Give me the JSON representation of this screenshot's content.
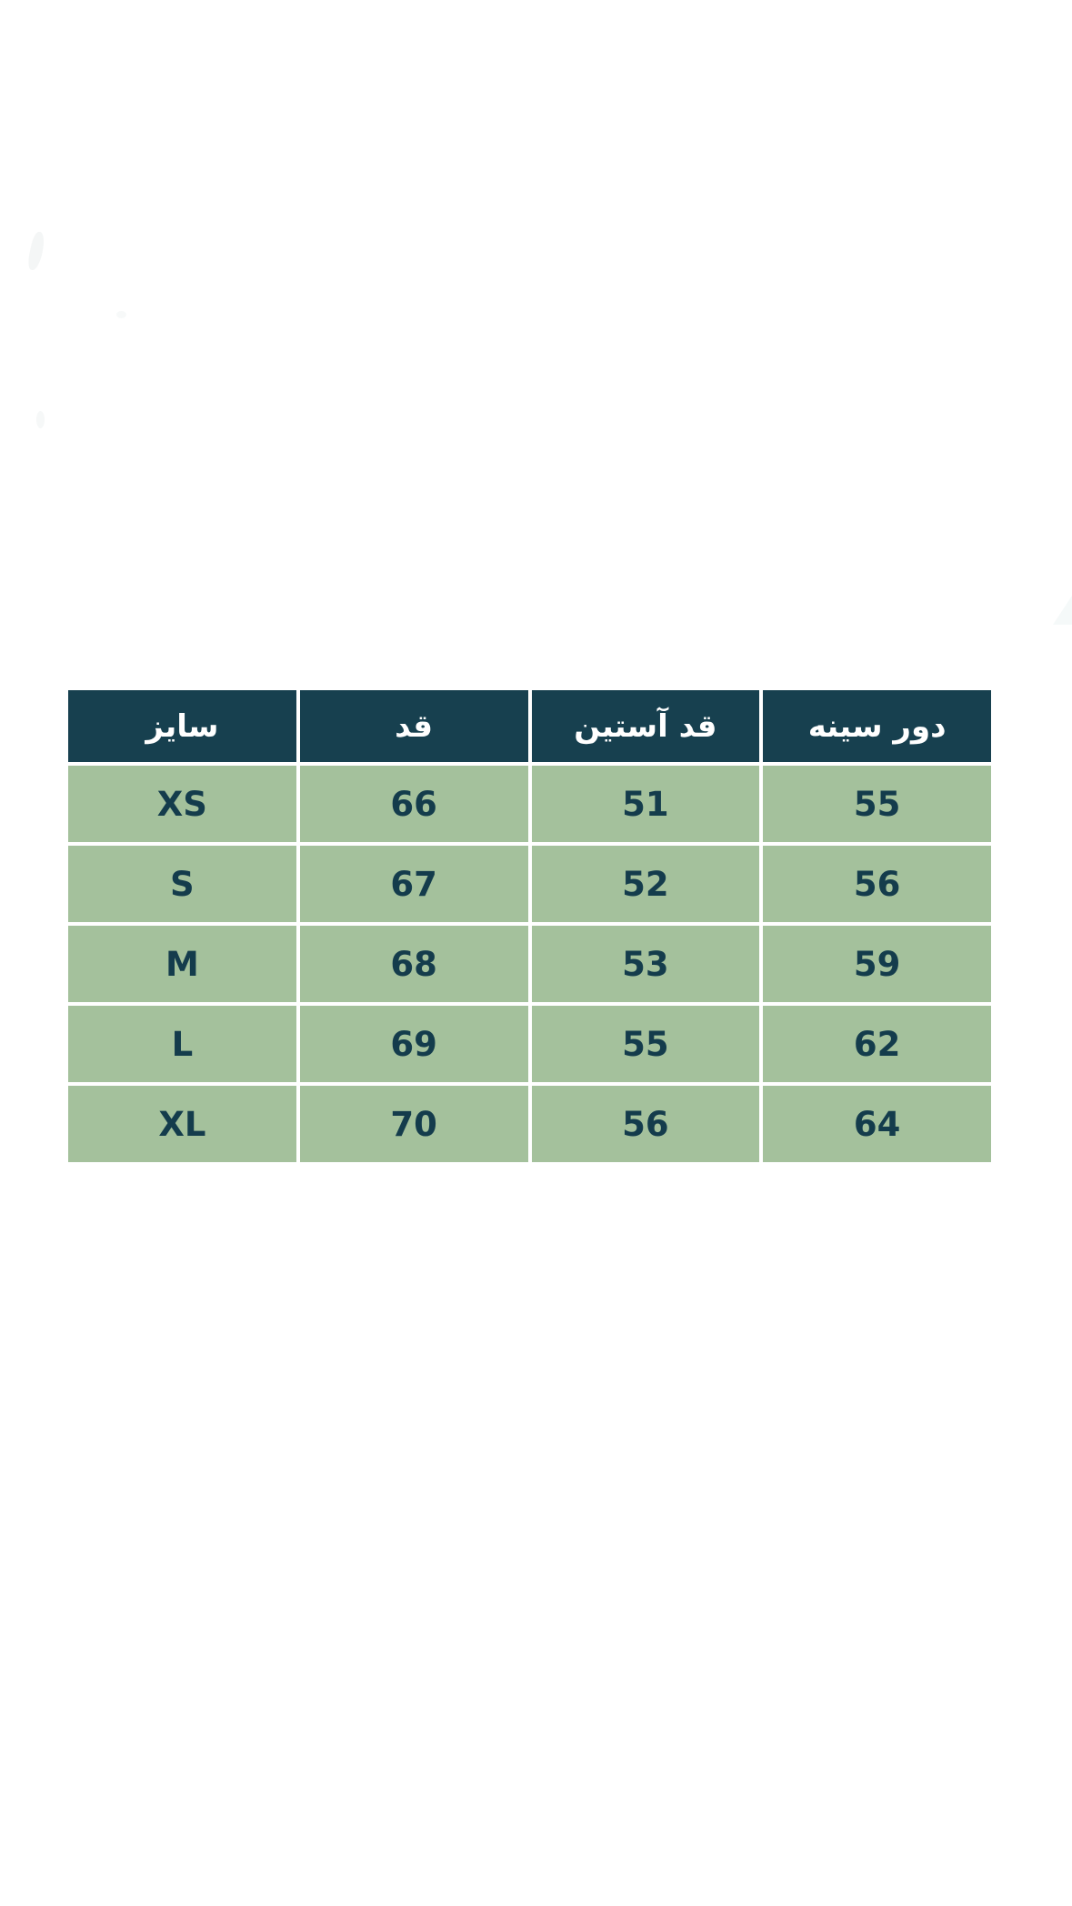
{
  "page": {
    "background": "#ffffff"
  },
  "size_chart": {
    "headers": [
      "سایز",
      "قد",
      "قد آستین",
      "دور سینه"
    ],
    "rows": [
      {
        "cells": [
          "XS",
          "66",
          "51",
          "55"
        ]
      },
      {
        "cells": [
          "S",
          "67",
          "52",
          "56"
        ]
      },
      {
        "cells": [
          "M",
          "68",
          "53",
          "59"
        ]
      },
      {
        "cells": [
          "L",
          "69",
          "55",
          "62"
        ]
      },
      {
        "cells": [
          "XL",
          "70",
          "56",
          "64"
        ]
      }
    ],
    "colors": {
      "header_bg": "#17404f",
      "header_text": "#ffffff",
      "row_bg": "#a4c19c",
      "cell_text": "#143c4c",
      "divider": "#ffffff"
    }
  },
  "chart_data": {
    "type": "table",
    "title": "",
    "columns": [
      "سایز",
      "قد",
      "قد آستین",
      "دور سینه"
    ],
    "rows": [
      [
        "XS",
        66,
        51,
        55
      ],
      [
        "S",
        67,
        52,
        56
      ],
      [
        "M",
        68,
        53,
        59
      ],
      [
        "L",
        69,
        55,
        62
      ],
      [
        "XL",
        70,
        56,
        64
      ]
    ],
    "layout": {
      "text_direction": "rtl",
      "grid": true,
      "grid_color": "#ffffff"
    }
  }
}
